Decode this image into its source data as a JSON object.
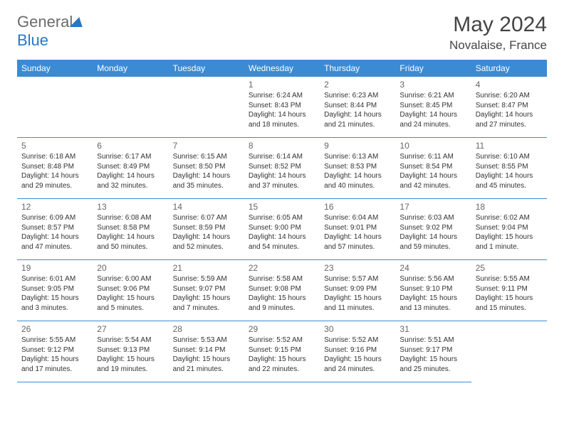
{
  "brand": {
    "part1": "General",
    "part2": "Blue"
  },
  "title": {
    "month": "May 2024",
    "location": "Novalaise, France"
  },
  "weekdays": [
    "Sunday",
    "Monday",
    "Tuesday",
    "Wednesday",
    "Thursday",
    "Friday",
    "Saturday"
  ],
  "colors": {
    "header_bg": "#3b8bd4",
    "header_fg": "#ffffff",
    "border": "#3b8bd4",
    "daynum": "#666666",
    "text": "#333333",
    "title_color": "#444444",
    "logo_gray": "#6b6b6b",
    "logo_blue": "#2a78c2",
    "page_bg": "#ffffff"
  },
  "typography": {
    "month_title_size": 30,
    "location_size": 17,
    "weekday_size": 12,
    "daynum_size": 12,
    "body_size": 10,
    "logo_size": 22
  },
  "layout": {
    "columns": 7,
    "rows": 5,
    "leading_blanks": 3,
    "days_in_month": 31
  },
  "days": [
    {
      "n": "1",
      "sunrise": "Sunrise: 6:24 AM",
      "sunset": "Sunset: 8:43 PM",
      "dl1": "Daylight: 14 hours",
      "dl2": "and 18 minutes."
    },
    {
      "n": "2",
      "sunrise": "Sunrise: 6:23 AM",
      "sunset": "Sunset: 8:44 PM",
      "dl1": "Daylight: 14 hours",
      "dl2": "and 21 minutes."
    },
    {
      "n": "3",
      "sunrise": "Sunrise: 6:21 AM",
      "sunset": "Sunset: 8:45 PM",
      "dl1": "Daylight: 14 hours",
      "dl2": "and 24 minutes."
    },
    {
      "n": "4",
      "sunrise": "Sunrise: 6:20 AM",
      "sunset": "Sunset: 8:47 PM",
      "dl1": "Daylight: 14 hours",
      "dl2": "and 27 minutes."
    },
    {
      "n": "5",
      "sunrise": "Sunrise: 6:18 AM",
      "sunset": "Sunset: 8:48 PM",
      "dl1": "Daylight: 14 hours",
      "dl2": "and 29 minutes."
    },
    {
      "n": "6",
      "sunrise": "Sunrise: 6:17 AM",
      "sunset": "Sunset: 8:49 PM",
      "dl1": "Daylight: 14 hours",
      "dl2": "and 32 minutes."
    },
    {
      "n": "7",
      "sunrise": "Sunrise: 6:15 AM",
      "sunset": "Sunset: 8:50 PM",
      "dl1": "Daylight: 14 hours",
      "dl2": "and 35 minutes."
    },
    {
      "n": "8",
      "sunrise": "Sunrise: 6:14 AM",
      "sunset": "Sunset: 8:52 PM",
      "dl1": "Daylight: 14 hours",
      "dl2": "and 37 minutes."
    },
    {
      "n": "9",
      "sunrise": "Sunrise: 6:13 AM",
      "sunset": "Sunset: 8:53 PM",
      "dl1": "Daylight: 14 hours",
      "dl2": "and 40 minutes."
    },
    {
      "n": "10",
      "sunrise": "Sunrise: 6:11 AM",
      "sunset": "Sunset: 8:54 PM",
      "dl1": "Daylight: 14 hours",
      "dl2": "and 42 minutes."
    },
    {
      "n": "11",
      "sunrise": "Sunrise: 6:10 AM",
      "sunset": "Sunset: 8:55 PM",
      "dl1": "Daylight: 14 hours",
      "dl2": "and 45 minutes."
    },
    {
      "n": "12",
      "sunrise": "Sunrise: 6:09 AM",
      "sunset": "Sunset: 8:57 PM",
      "dl1": "Daylight: 14 hours",
      "dl2": "and 47 minutes."
    },
    {
      "n": "13",
      "sunrise": "Sunrise: 6:08 AM",
      "sunset": "Sunset: 8:58 PM",
      "dl1": "Daylight: 14 hours",
      "dl2": "and 50 minutes."
    },
    {
      "n": "14",
      "sunrise": "Sunrise: 6:07 AM",
      "sunset": "Sunset: 8:59 PM",
      "dl1": "Daylight: 14 hours",
      "dl2": "and 52 minutes."
    },
    {
      "n": "15",
      "sunrise": "Sunrise: 6:05 AM",
      "sunset": "Sunset: 9:00 PM",
      "dl1": "Daylight: 14 hours",
      "dl2": "and 54 minutes."
    },
    {
      "n": "16",
      "sunrise": "Sunrise: 6:04 AM",
      "sunset": "Sunset: 9:01 PM",
      "dl1": "Daylight: 14 hours",
      "dl2": "and 57 minutes."
    },
    {
      "n": "17",
      "sunrise": "Sunrise: 6:03 AM",
      "sunset": "Sunset: 9:02 PM",
      "dl1": "Daylight: 14 hours",
      "dl2": "and 59 minutes."
    },
    {
      "n": "18",
      "sunrise": "Sunrise: 6:02 AM",
      "sunset": "Sunset: 9:04 PM",
      "dl1": "Daylight: 15 hours",
      "dl2": "and 1 minute."
    },
    {
      "n": "19",
      "sunrise": "Sunrise: 6:01 AM",
      "sunset": "Sunset: 9:05 PM",
      "dl1": "Daylight: 15 hours",
      "dl2": "and 3 minutes."
    },
    {
      "n": "20",
      "sunrise": "Sunrise: 6:00 AM",
      "sunset": "Sunset: 9:06 PM",
      "dl1": "Daylight: 15 hours",
      "dl2": "and 5 minutes."
    },
    {
      "n": "21",
      "sunrise": "Sunrise: 5:59 AM",
      "sunset": "Sunset: 9:07 PM",
      "dl1": "Daylight: 15 hours",
      "dl2": "and 7 minutes."
    },
    {
      "n": "22",
      "sunrise": "Sunrise: 5:58 AM",
      "sunset": "Sunset: 9:08 PM",
      "dl1": "Daylight: 15 hours",
      "dl2": "and 9 minutes."
    },
    {
      "n": "23",
      "sunrise": "Sunrise: 5:57 AM",
      "sunset": "Sunset: 9:09 PM",
      "dl1": "Daylight: 15 hours",
      "dl2": "and 11 minutes."
    },
    {
      "n": "24",
      "sunrise": "Sunrise: 5:56 AM",
      "sunset": "Sunset: 9:10 PM",
      "dl1": "Daylight: 15 hours",
      "dl2": "and 13 minutes."
    },
    {
      "n": "25",
      "sunrise": "Sunrise: 5:55 AM",
      "sunset": "Sunset: 9:11 PM",
      "dl1": "Daylight: 15 hours",
      "dl2": "and 15 minutes."
    },
    {
      "n": "26",
      "sunrise": "Sunrise: 5:55 AM",
      "sunset": "Sunset: 9:12 PM",
      "dl1": "Daylight: 15 hours",
      "dl2": "and 17 minutes."
    },
    {
      "n": "27",
      "sunrise": "Sunrise: 5:54 AM",
      "sunset": "Sunset: 9:13 PM",
      "dl1": "Daylight: 15 hours",
      "dl2": "and 19 minutes."
    },
    {
      "n": "28",
      "sunrise": "Sunrise: 5:53 AM",
      "sunset": "Sunset: 9:14 PM",
      "dl1": "Daylight: 15 hours",
      "dl2": "and 21 minutes."
    },
    {
      "n": "29",
      "sunrise": "Sunrise: 5:52 AM",
      "sunset": "Sunset: 9:15 PM",
      "dl1": "Daylight: 15 hours",
      "dl2": "and 22 minutes."
    },
    {
      "n": "30",
      "sunrise": "Sunrise: 5:52 AM",
      "sunset": "Sunset: 9:16 PM",
      "dl1": "Daylight: 15 hours",
      "dl2": "and 24 minutes."
    },
    {
      "n": "31",
      "sunrise": "Sunrise: 5:51 AM",
      "sunset": "Sunset: 9:17 PM",
      "dl1": "Daylight: 15 hours",
      "dl2": "and 25 minutes."
    }
  ]
}
